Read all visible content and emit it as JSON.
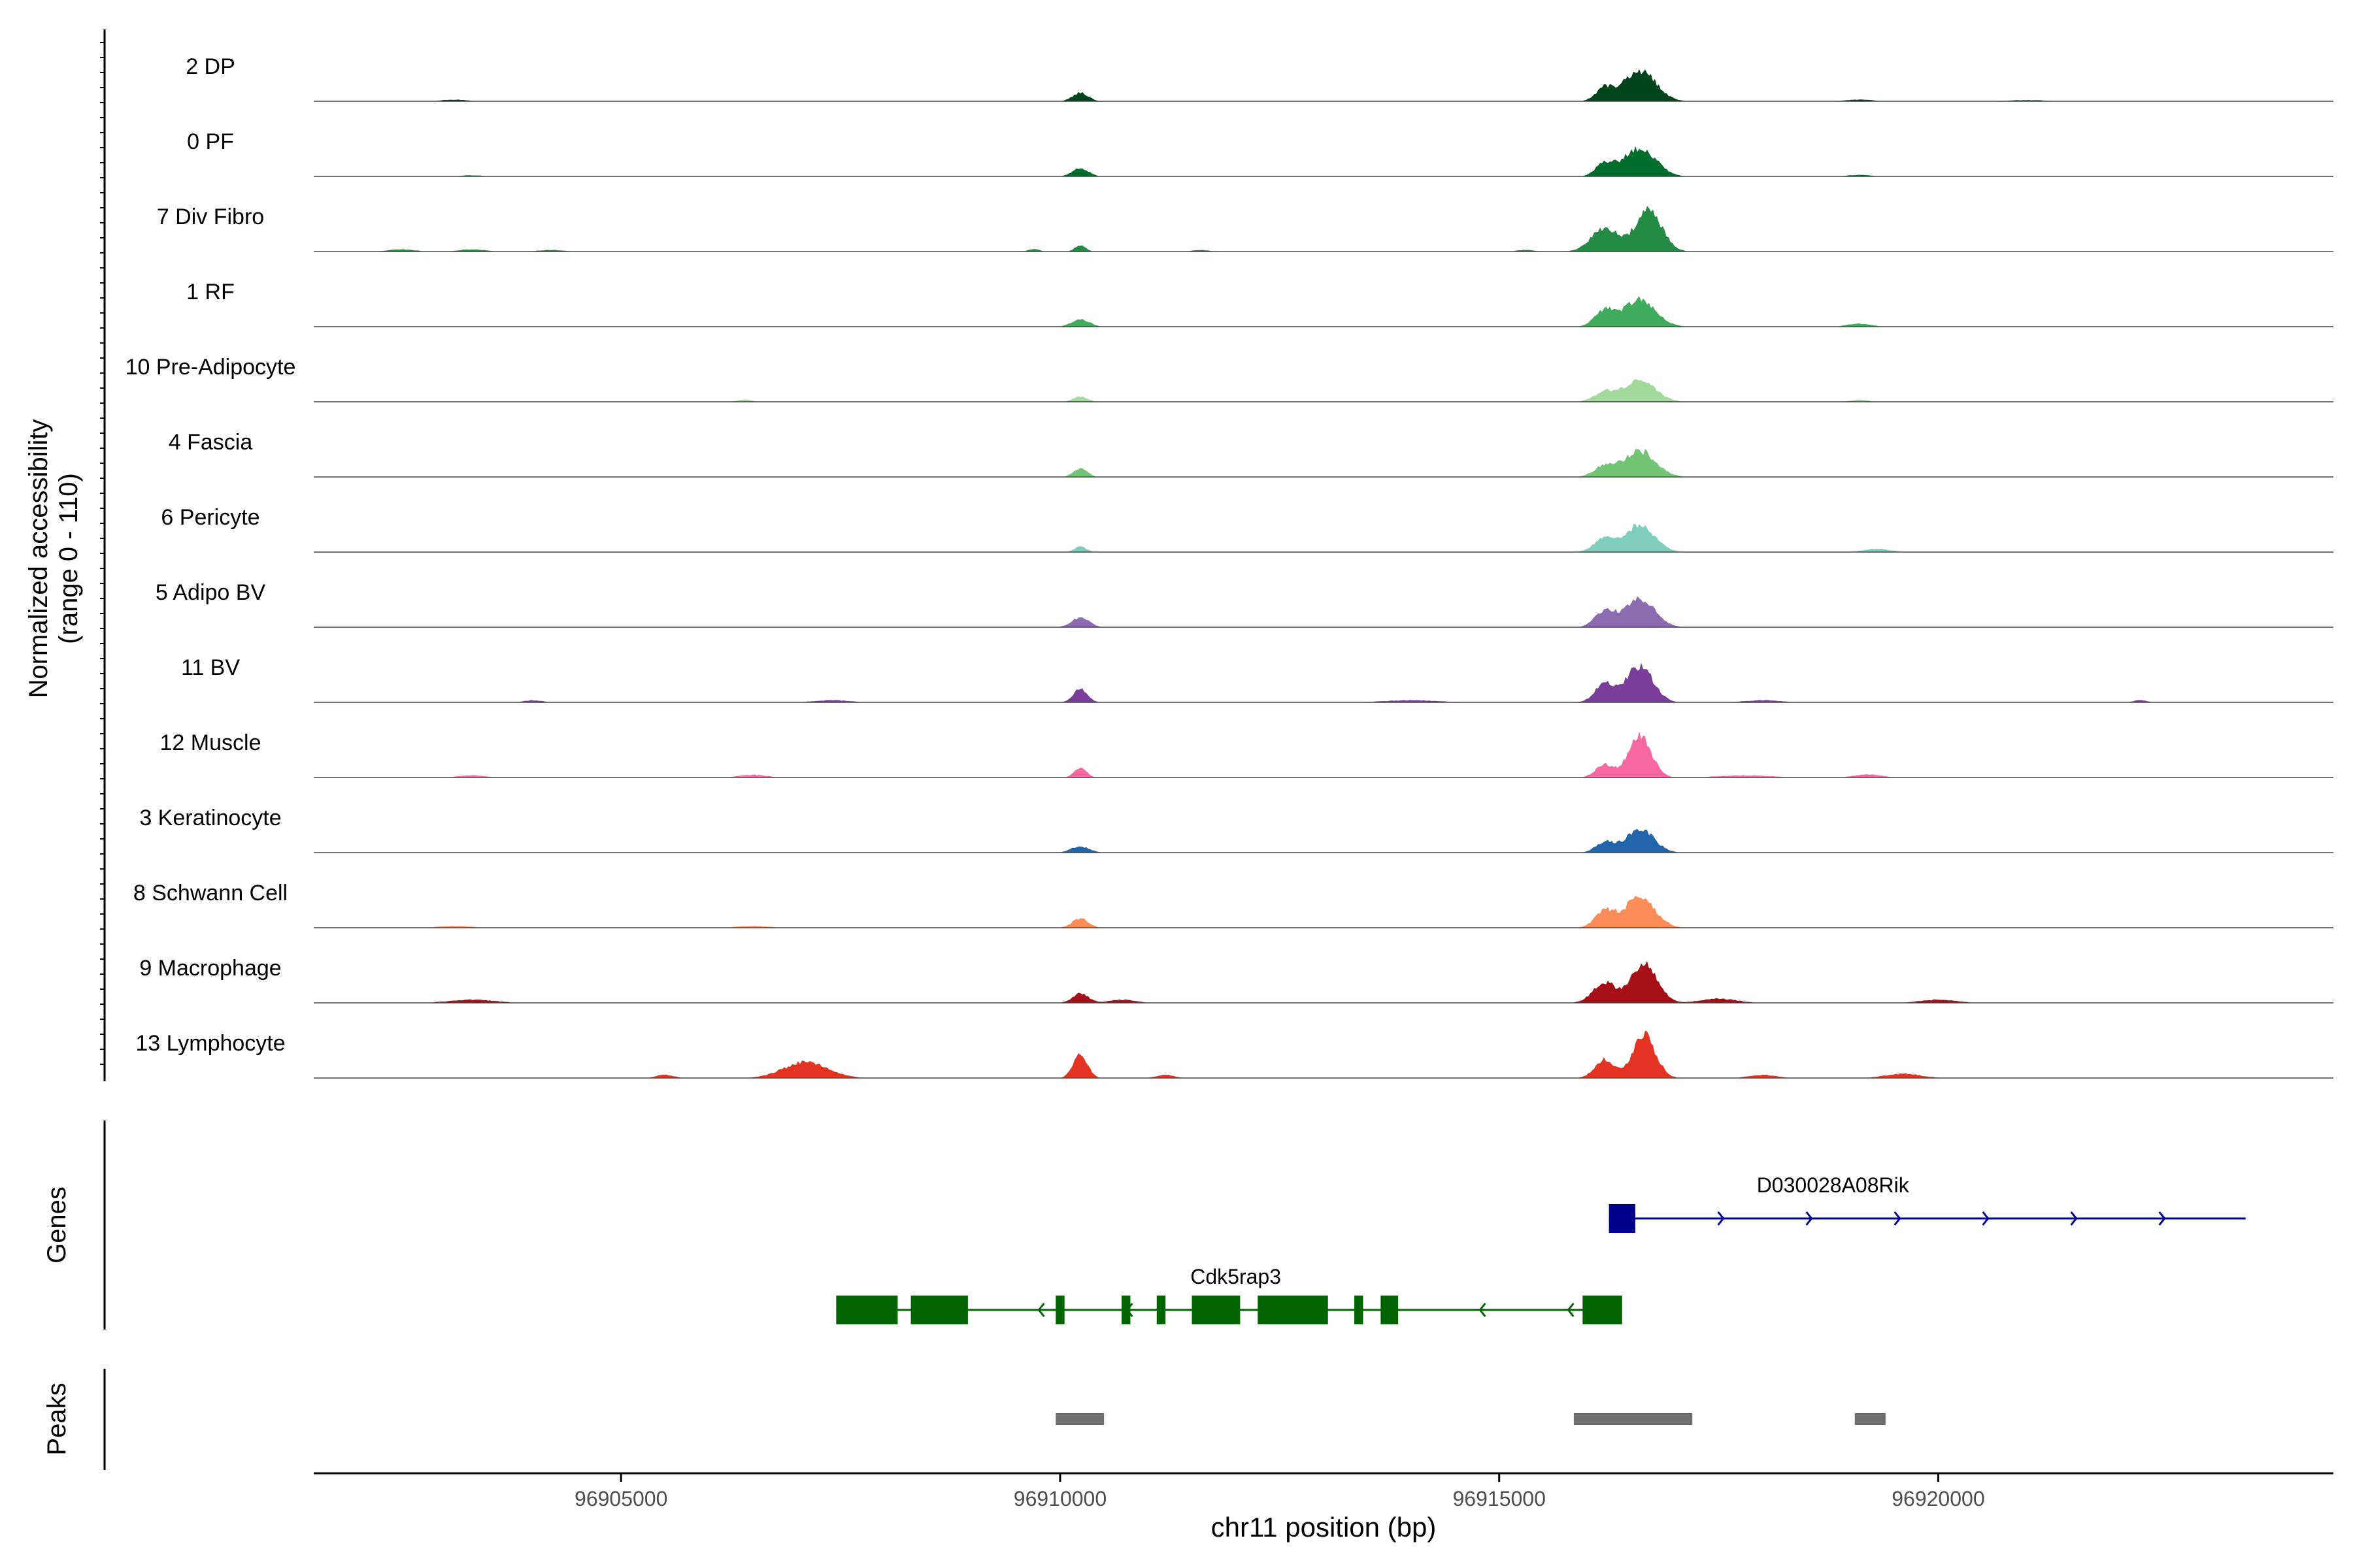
{
  "chart_data": {
    "type": "area",
    "title": "",
    "ylabel_line1": "Normalized accessibility",
    "ylabel_line2": "(range 0 - 110)",
    "xlabel": "chr11 position (bp)",
    "xlim": [
      96901500,
      96924500
    ],
    "ylim": [
      0,
      110
    ],
    "xticks": [
      96905000,
      96910000,
      96915000,
      96920000
    ],
    "tick_labels": [
      "96905000",
      "96910000",
      "96915000",
      "96920000"
    ],
    "genes_label": "Genes",
    "peaks_label": "Peaks",
    "tracks": [
      {
        "name": "2 DP",
        "color": "#00441b",
        "peaks": [
          [
            96910230,
            16,
            90
          ],
          [
            96916200,
            24,
            100
          ],
          [
            96916600,
            60,
            180
          ],
          [
            96903100,
            3,
            150
          ],
          [
            96919100,
            3,
            160
          ],
          [
            96921000,
            2,
            260
          ]
        ]
      },
      {
        "name": "0 PF",
        "color": "#006d2c",
        "peaks": [
          [
            96910230,
            16,
            90
          ],
          [
            96916200,
            24,
            100
          ],
          [
            96916600,
            55,
            180
          ],
          [
            96903300,
            2,
            150
          ],
          [
            96919100,
            3,
            130
          ]
        ]
      },
      {
        "name": "7 Div Fibro",
        "color": "#238b45",
        "peaks": [
          [
            96910230,
            12,
            60
          ],
          [
            96909700,
            5,
            60
          ],
          [
            96916200,
            45,
            150
          ],
          [
            96916700,
            80,
            150
          ],
          [
            96902500,
            4,
            150
          ],
          [
            96903300,
            4,
            150
          ],
          [
            96904200,
            3,
            150
          ],
          [
            96911600,
            3,
            100
          ],
          [
            96915300,
            3,
            100
          ]
        ]
      },
      {
        "name": "1 RF",
        "color": "#41ab5d",
        "peaks": [
          [
            96910230,
            14,
            100
          ],
          [
            96916200,
            30,
            110
          ],
          [
            96916600,
            52,
            180
          ],
          [
            96919100,
            6,
            130
          ]
        ]
      },
      {
        "name": "10 Pre-Adipocyte",
        "color": "#a1d99b",
        "peaks": [
          [
            96910230,
            10,
            80
          ],
          [
            96916200,
            18,
            120
          ],
          [
            96916600,
            40,
            180
          ],
          [
            96906400,
            4,
            80
          ],
          [
            96919100,
            4,
            100
          ]
        ]
      },
      {
        "name": "4 Fascia",
        "color": "#74c476",
        "peaks": [
          [
            96910230,
            16,
            80
          ],
          [
            96916200,
            20,
            120
          ],
          [
            96916600,
            50,
            180
          ]
        ]
      },
      {
        "name": "6 Pericyte",
        "color": "#7fcdbb",
        "peaks": [
          [
            96910230,
            10,
            70
          ],
          [
            96916200,
            25,
            120
          ],
          [
            96916600,
            50,
            170
          ],
          [
            96919300,
            6,
            150
          ]
        ]
      },
      {
        "name": "5 Adipo BV",
        "color": "#8c6bb1",
        "peaks": [
          [
            96910230,
            18,
            100
          ],
          [
            96916200,
            30,
            110
          ],
          [
            96916600,
            55,
            170
          ]
        ]
      },
      {
        "name": "11 BV",
        "color": "#7a3d9a",
        "peaks": [
          [
            96910230,
            25,
            80
          ],
          [
            96916200,
            35,
            110
          ],
          [
            96916600,
            70,
            150
          ],
          [
            96904000,
            4,
            100
          ],
          [
            96907400,
            4,
            200
          ],
          [
            96914000,
            4,
            300
          ],
          [
            96918000,
            4,
            200
          ],
          [
            96922300,
            4,
            80
          ]
        ]
      },
      {
        "name": "12 Muscle",
        "color": "#f768a1",
        "peaks": [
          [
            96910230,
            18,
            70
          ],
          [
            96916200,
            25,
            100
          ],
          [
            96916600,
            80,
            130
          ],
          [
            96903300,
            4,
            150
          ],
          [
            96906500,
            5,
            150
          ],
          [
            96919200,
            6,
            150
          ],
          [
            96917800,
            4,
            300
          ]
        ]
      },
      {
        "name": "3 Keratinocyte",
        "color": "#2166ac",
        "peaks": [
          [
            96910230,
            12,
            100
          ],
          [
            96916200,
            20,
            100
          ],
          [
            96916600,
            45,
            160
          ]
        ]
      },
      {
        "name": "8 Schwann Cell",
        "color": "#fc8d59",
        "peaks": [
          [
            96910230,
            18,
            90
          ],
          [
            96916200,
            30,
            110
          ],
          [
            96916600,
            60,
            170
          ],
          [
            96903100,
            3,
            200
          ],
          [
            96906500,
            3,
            200
          ]
        ]
      },
      {
        "name": "9 Macrophage",
        "color": "#a50f15",
        "peaks": [
          [
            96910230,
            18,
            90
          ],
          [
            96916200,
            38,
            130
          ],
          [
            96916650,
            72,
            150
          ],
          [
            96903300,
            6,
            250
          ],
          [
            96910700,
            6,
            150
          ],
          [
            96917500,
            8,
            200
          ],
          [
            96920000,
            6,
            200
          ]
        ]
      },
      {
        "name": "13 Lymphocyte",
        "color": "#e53323",
        "peaks": [
          [
            96910230,
            45,
            80
          ],
          [
            96916200,
            35,
            110
          ],
          [
            96916650,
            82,
            130
          ],
          [
            96907100,
            30,
            250
          ],
          [
            96905500,
            6,
            100
          ],
          [
            96911200,
            6,
            100
          ],
          [
            96919600,
            8,
            200
          ],
          [
            96918000,
            6,
            150
          ]
        ]
      }
    ],
    "genes": [
      {
        "name": "D030028A08Rik",
        "strand": "+",
        "color": "#00008b",
        "start": 96916250,
        "end": 96923500,
        "exons": [
          [
            96916250,
            96916550
          ]
        ],
        "label_at": 96918800
      },
      {
        "name": "Cdk5rap3",
        "strand": "-",
        "color": "#006400",
        "start": 96907450,
        "end": 96916400,
        "exons": [
          [
            96907450,
            96908150
          ],
          [
            96908300,
            96908950
          ],
          [
            96909950,
            96910050
          ],
          [
            96910700,
            96910800
          ],
          [
            96911100,
            96911200
          ],
          [
            96911500,
            96912050
          ],
          [
            96912250,
            96913050
          ],
          [
            96913350,
            96913450
          ],
          [
            96913650,
            96913850
          ],
          [
            96915950,
            96916400
          ]
        ],
        "label_at": 96912000
      }
    ],
    "peaks": [
      [
        96909950,
        96910500
      ],
      [
        96915850,
        96917200
      ],
      [
        96919050,
        96919400
      ]
    ]
  }
}
